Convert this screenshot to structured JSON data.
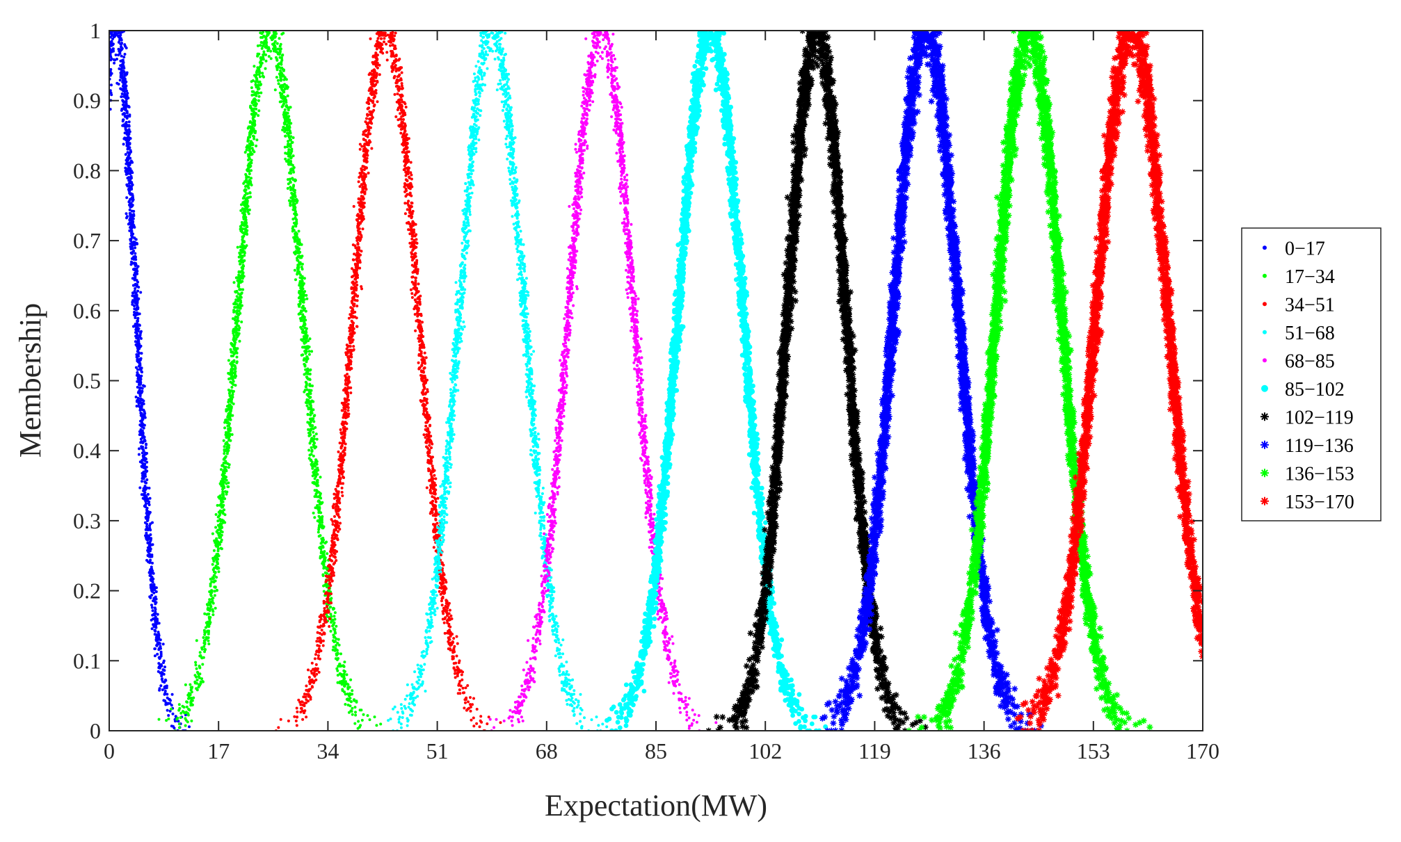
{
  "chart_data": {
    "type": "scatter",
    "title": "",
    "xlabel": "Expectation(MW)",
    "ylabel": "Membership",
    "xlim": [
      0,
      170
    ],
    "ylim": [
      0,
      1
    ],
    "xticks": [
      "0",
      "17",
      "34",
      "51",
      "68",
      "85",
      "102",
      "119",
      "136",
      "153",
      "170"
    ],
    "yticks": [
      "0",
      "0.1",
      "0.2",
      "0.3",
      "0.4",
      "0.5",
      "0.6",
      "0.7",
      "0.8",
      "0.9",
      "1"
    ],
    "grid": false,
    "legend_position": "right",
    "series": [
      {
        "name": "0−17",
        "color": "#0000ff",
        "marker": "dot",
        "center": 1,
        "sigma": 3.2,
        "x_min": 0,
        "x_max": 13
      },
      {
        "name": "17−34",
        "color": "#00ff00",
        "marker": "dot",
        "center": 25,
        "sigma": 5.0,
        "x_min": 7,
        "x_max": 43
      },
      {
        "name": "34−51",
        "color": "#ff0000",
        "marker": "dot",
        "center": 43,
        "sigma": 5.0,
        "x_min": 25,
        "x_max": 61
      },
      {
        "name": "51−68",
        "color": "#00ffff",
        "marker": "dot",
        "center": 59.5,
        "sigma": 5.0,
        "x_min": 41,
        "x_max": 78
      },
      {
        "name": "68−85",
        "color": "#ff00ff",
        "marker": "dot",
        "center": 76.5,
        "sigma": 5.0,
        "x_min": 58,
        "x_max": 95
      },
      {
        "name": "85−102",
        "color": "#00ffff",
        "marker": "dot-large",
        "center": 93.5,
        "sigma": 5.0,
        "x_min": 75,
        "x_max": 112
      },
      {
        "name": "102−119",
        "color": "#000000",
        "marker": "star",
        "center": 110,
        "sigma": 4.5,
        "x_min": 93,
        "x_max": 128
      },
      {
        "name": "119−136",
        "color": "#0000ff",
        "marker": "star",
        "center": 127,
        "sigma": 5.0,
        "x_min": 108,
        "x_max": 145
      },
      {
        "name": "136−153",
        "color": "#00ff00",
        "marker": "star",
        "center": 143,
        "sigma": 5.0,
        "x_min": 124,
        "x_max": 163
      },
      {
        "name": "153−170",
        "color": "#ff0000",
        "marker": "star",
        "center": 159,
        "sigma": 5.5,
        "x_min": 139,
        "x_max": 170
      }
    ]
  }
}
